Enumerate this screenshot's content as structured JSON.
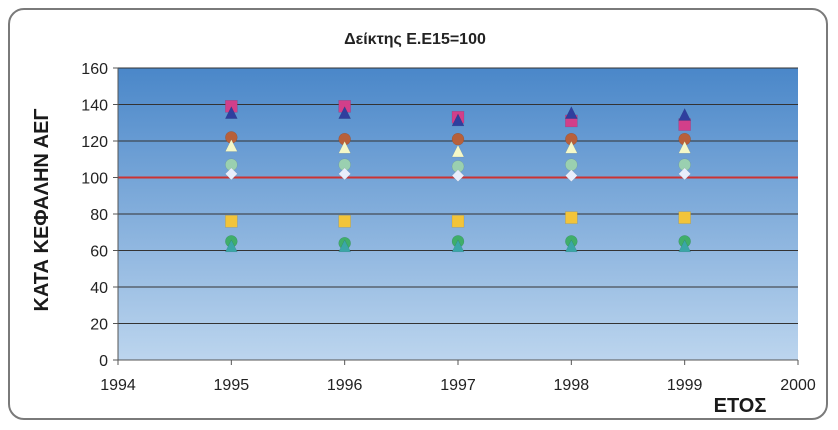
{
  "chart_data": {
    "type": "scatter",
    "title": "Δείκτης Ε.Ε15=100",
    "xlabel": "ΕΤΟΣ",
    "ylabel": "ΚΑΤΑ ΚΕΦΑΛΗΝ ΑΕΓ",
    "xlim": [
      1994,
      2000
    ],
    "ylim": [
      0,
      160
    ],
    "xticks": [
      1994,
      1995,
      1996,
      1997,
      1998,
      1999,
      2000
    ],
    "yticks": [
      0,
      20,
      40,
      60,
      80,
      100,
      120,
      140,
      160
    ],
    "grid": true,
    "reference_line": {
      "y": 100,
      "color": "#cc3333"
    },
    "colors": {
      "plot_bg_top": "#4a87c9",
      "plot_bg_bottom": "#bcd5ee",
      "gridline": "#333333",
      "axis": "#555555"
    },
    "series": [
      {
        "marker": "square",
        "color": "#d23f8a",
        "x": [
          1995,
          1996,
          1997,
          1998,
          1999
        ],
        "y": [
          139,
          139,
          133,
          131,
          129
        ]
      },
      {
        "marker": "triangle",
        "color": "#2f3e9e",
        "x": [
          1995,
          1996,
          1997,
          1998,
          1999
        ],
        "y": [
          135,
          135,
          131,
          135,
          134
        ]
      },
      {
        "marker": "circle",
        "color": "#b8603a",
        "x": [
          1995,
          1996,
          1997,
          1998,
          1999
        ],
        "y": [
          122,
          121,
          121,
          121,
          121
        ]
      },
      {
        "marker": "triangle",
        "color": "#f4f8c8",
        "x": [
          1995,
          1996,
          1997,
          1998,
          1999
        ],
        "y": [
          117,
          116,
          114,
          116,
          116
        ]
      },
      {
        "marker": "circle",
        "color": "#9ad0b0",
        "x": [
          1995,
          1996,
          1997,
          1998,
          1999
        ],
        "y": [
          107,
          107,
          106,
          107,
          107
        ]
      },
      {
        "marker": "diamond",
        "color": "#e8eefc",
        "x": [
          1995,
          1996,
          1997,
          1998,
          1999
        ],
        "y": [
          102,
          102,
          101,
          101,
          102
        ]
      },
      {
        "marker": "square",
        "color": "#f2c43a",
        "x": [
          1995,
          1996,
          1997,
          1998,
          1999
        ],
        "y": [
          76,
          76,
          76,
          78,
          78
        ]
      },
      {
        "marker": "circle",
        "color": "#3fae6a",
        "x": [
          1995,
          1996,
          1997,
          1998,
          1999
        ],
        "y": [
          65,
          64,
          65,
          65,
          65
        ]
      },
      {
        "marker": "triangle",
        "color": "#3aa7a7",
        "x": [
          1995,
          1996,
          1997,
          1998,
          1999
        ],
        "y": [
          62,
          62,
          62,
          62,
          62
        ]
      }
    ]
  }
}
